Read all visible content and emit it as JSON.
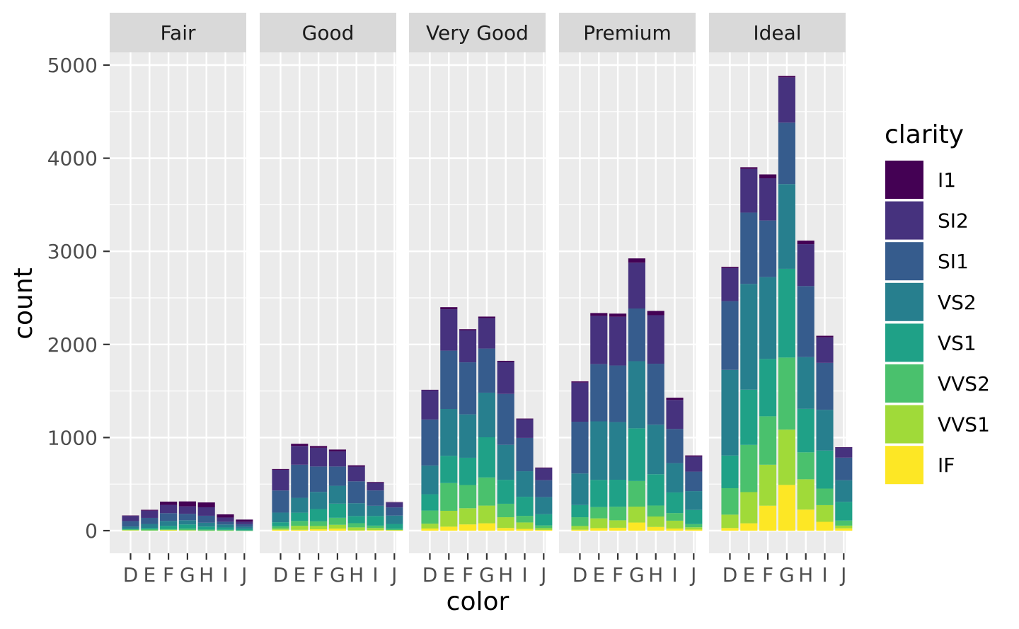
{
  "chart_data": {
    "type": "bar",
    "stacked": true,
    "xlabel": "color",
    "ylabel": "count",
    "ylim": [
      0,
      5000
    ],
    "yticks": [
      0,
      1000,
      2000,
      3000,
      4000,
      5000
    ],
    "ytick_labels": [
      "0",
      "1000",
      "2000",
      "3000",
      "4000",
      "5000"
    ],
    "categories": [
      "D",
      "E",
      "F",
      "G",
      "H",
      "I",
      "J"
    ],
    "legend": {
      "title": "clarity",
      "position": "right",
      "entries": [
        "I1",
        "SI2",
        "SI1",
        "VS2",
        "VS1",
        "VVS2",
        "VVS1",
        "IF"
      ]
    },
    "colors": {
      "IF": "#fde725",
      "VVS1": "#a0da39",
      "VVS2": "#4ac16d",
      "VS1": "#1fa187",
      "VS2": "#277f8e",
      "SI1": "#365c8d",
      "SI2": "#46327e",
      "I1": "#440154"
    },
    "stack_order": [
      "IF",
      "VVS1",
      "VVS2",
      "VS1",
      "VS2",
      "SI1",
      "SI2",
      "I1"
    ],
    "facets": [
      {
        "label": "Fair",
        "series": {
          "IF": [
            3,
            0,
            4,
            2,
            0,
            0,
            0
          ],
          "VVS1": [
            3,
            3,
            5,
            3,
            1,
            1,
            1
          ],
          "VVS2": [
            9,
            13,
            10,
            17,
            11,
            8,
            1
          ],
          "VS1": [
            5,
            14,
            33,
            45,
            32,
            25,
            16
          ],
          "VS2": [
            25,
            42,
            53,
            45,
            41,
            32,
            23
          ],
          "SI1": [
            58,
            65,
            83,
            69,
            75,
            30,
            28
          ],
          "SI2": [
            56,
            78,
            89,
            80,
            91,
            45,
            27
          ],
          "I1": [
            4,
            9,
            35,
            53,
            52,
            34,
            23
          ]
        }
      },
      {
        "label": "Good",
        "series": {
          "IF": [
            9,
            9,
            15,
            22,
            4,
            6,
            6
          ],
          "VVS1": [
            13,
            43,
            35,
            41,
            31,
            22,
            1
          ],
          "VVS2": [
            25,
            52,
            50,
            75,
            45,
            26,
            13
          ],
          "VS1": [
            43,
            89,
            132,
            152,
            77,
            103,
            52
          ],
          "VS2": [
            104,
            160,
            184,
            192,
            138,
            110,
            90
          ],
          "SI1": [
            237,
            355,
            273,
            207,
            235,
            165,
            88
          ],
          "SI2": [
            223,
            202,
            201,
            163,
            158,
            81,
            53
          ],
          "I1": [
            8,
            23,
            19,
            19,
            14,
            9,
            4
          ]
        }
      },
      {
        "label": "Very Good",
        "series": {
          "IF": [
            23,
            43,
            67,
            79,
            29,
            19,
            8
          ],
          "VVS1": [
            52,
            170,
            174,
            190,
            115,
            69,
            19
          ],
          "VVS2": [
            141,
            298,
            249,
            302,
            145,
            71,
            29
          ],
          "VS1": [
            175,
            293,
            293,
            432,
            257,
            205,
            120
          ],
          "VS2": [
            309,
            503,
            466,
            479,
            376,
            274,
            184
          ],
          "SI1": [
            494,
            626,
            559,
            474,
            547,
            358,
            182
          ],
          "SI2": [
            314,
            445,
            343,
            327,
            343,
            200,
            128
          ],
          "I1": [
            5,
            22,
            13,
            16,
            12,
            8,
            8
          ]
        }
      },
      {
        "label": "Premium",
        "series": {
          "IF": [
            10,
            27,
            31,
            87,
            40,
            23,
            12
          ],
          "VVS1": [
            40,
            105,
            80,
            171,
            112,
            84,
            24
          ],
          "VVS2": [
            94,
            121,
            146,
            275,
            118,
            82,
            34
          ],
          "VS1": [
            131,
            292,
            290,
            566,
            336,
            221,
            153
          ],
          "VS2": [
            339,
            629,
            619,
            721,
            532,
            315,
            202
          ],
          "SI1": [
            556,
            614,
            608,
            566,
            655,
            367,
            209
          ],
          "SI2": [
            421,
            519,
            523,
            492,
            521,
            312,
            161
          ],
          "I1": [
            12,
            30,
            34,
            46,
            46,
            24,
            13
          ]
        }
      },
      {
        "label": "Ideal",
        "series": {
          "IF": [
            28,
            79,
            268,
            491,
            226,
            95,
            25
          ],
          "VVS1": [
            144,
            335,
            440,
            594,
            326,
            179,
            29
          ],
          "VVS2": [
            284,
            507,
            520,
            774,
            289,
            178,
            54
          ],
          "VS1": [
            351,
            593,
            616,
            953,
            467,
            408,
            201
          ],
          "VS2": [
            920,
            1136,
            879,
            910,
            556,
            438,
            232
          ],
          "SI1": [
            738,
            766,
            608,
            660,
            763,
            504,
            243
          ],
          "SI2": [
            356,
            469,
            453,
            486,
            450,
            274,
            110
          ],
          "I1": [
            13,
            18,
            42,
            16,
            38,
            17,
            2
          ]
        }
      }
    ]
  }
}
